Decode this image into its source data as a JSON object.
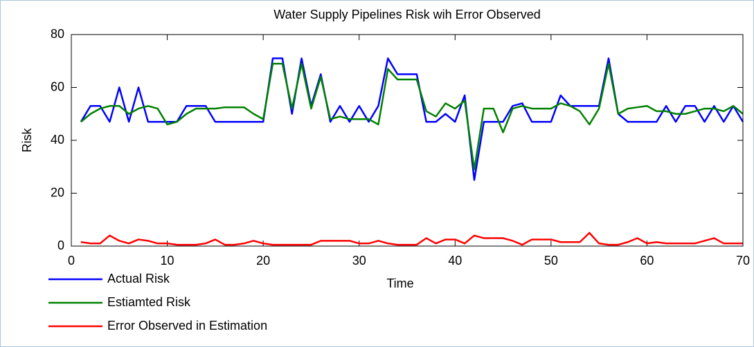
{
  "chart_data": {
    "type": "line",
    "title": "Water Supply Pipelines Risk wih Error Observed",
    "xlabel": "Time",
    "ylabel": "Risk",
    "x": [
      1,
      2,
      3,
      4,
      5,
      6,
      7,
      8,
      9,
      10,
      11,
      12,
      13,
      14,
      15,
      16,
      17,
      18,
      19,
      20,
      21,
      22,
      23,
      24,
      25,
      26,
      27,
      28,
      29,
      30,
      31,
      32,
      33,
      34,
      35,
      36,
      37,
      38,
      39,
      40,
      41,
      42,
      43,
      44,
      45,
      46,
      47,
      48,
      49,
      50,
      51,
      52,
      53,
      54,
      55,
      56,
      57,
      58,
      59,
      60,
      61,
      62,
      63,
      64,
      65,
      66,
      67,
      68,
      69,
      70
    ],
    "series": [
      {
        "name": "Actual Risk",
        "color": "#0000ff",
        "values": [
          47,
          53,
          53,
          47,
          60,
          47,
          60,
          47,
          47,
          47,
          47,
          53,
          53,
          53,
          47,
          47,
          47,
          47,
          47,
          47,
          71,
          71,
          50,
          71,
          53,
          65,
          47,
          53,
          47,
          53,
          47,
          53,
          71,
          65,
          65,
          65,
          47,
          47,
          50,
          47,
          57,
          25,
          47,
          47,
          47,
          53,
          54,
          47,
          47,
          47,
          57,
          53,
          53,
          53,
          53,
          71,
          50,
          47,
          47,
          47,
          47,
          53,
          47,
          53,
          53,
          47,
          53,
          47,
          53,
          47
        ]
      },
      {
        "name": "Estiamted Risk",
        "color": "#008000",
        "values": [
          47,
          50,
          52,
          53,
          53,
          50,
          52,
          53,
          52,
          46,
          47,
          50,
          52,
          52,
          52,
          52.5,
          52.5,
          52.5,
          50,
          48,
          69,
          69,
          52,
          69,
          52,
          64,
          48,
          49,
          48,
          48,
          48,
          46,
          67,
          63,
          63,
          63,
          51,
          49,
          54,
          52,
          55,
          29,
          52,
          52,
          43,
          52,
          53,
          52,
          52,
          52,
          54,
          53,
          51,
          46,
          52,
          69,
          50,
          52,
          52.5,
          53,
          51,
          51,
          50,
          50,
          51,
          52,
          52,
          51,
          53,
          50
        ]
      },
      {
        "name": "Error Observed in Estimation",
        "color": "#ff0000",
        "values": [
          1.5,
          1,
          1,
          4,
          2,
          1,
          2.5,
          2,
          1,
          1,
          0.5,
          0.5,
          0.5,
          1,
          2.5,
          0.5,
          0.5,
          1,
          2,
          1,
          0.5,
          0.5,
          0.5,
          0.5,
          0.5,
          2,
          2,
          2,
          2,
          1,
          1,
          2,
          1,
          0.5,
          0.5,
          0.5,
          3,
          1,
          2.5,
          2.5,
          1,
          4,
          3,
          3,
          3,
          2,
          0.5,
          2.5,
          2.5,
          2.5,
          1.5,
          1.5,
          1.5,
          5,
          1,
          0.5,
          0.5,
          1.5,
          3,
          1,
          1.5,
          1,
          1,
          1,
          1,
          2,
          3,
          1,
          1,
          1
        ]
      }
    ],
    "xlim": [
      0,
      70
    ],
    "xticks": [
      0,
      10,
      20,
      30,
      40,
      50,
      60,
      70
    ],
    "ylim": [
      0,
      80
    ],
    "yticks": [
      0,
      20,
      40,
      60,
      80
    ]
  }
}
